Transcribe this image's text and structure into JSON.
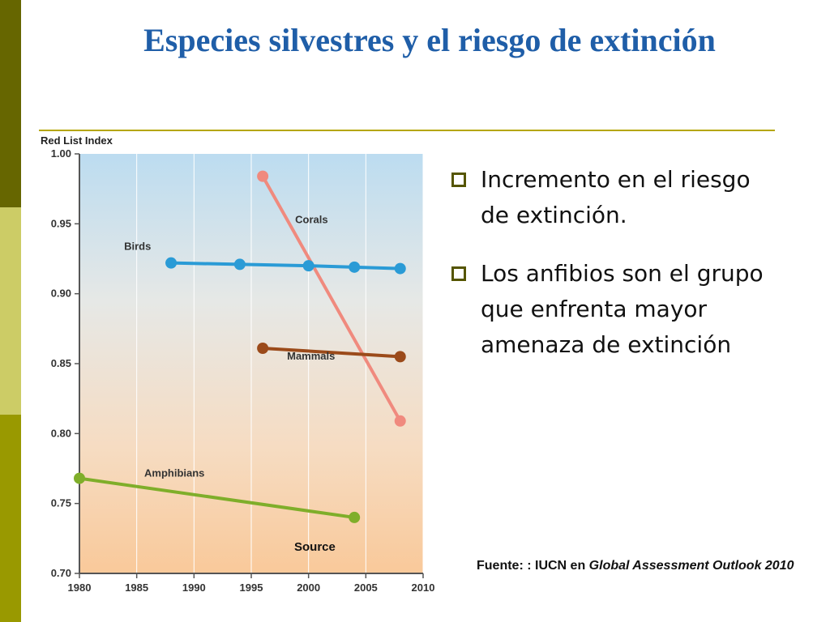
{
  "slide": {
    "title": "Especies silvestres y el riesgo de extinción",
    "bullets": [
      "Incremento en el riesgo de extinción.",
      "Los anfibios son el grupo que enfrenta mayor amenaza de extinción"
    ],
    "source_prefix": "Fuente: : IUCN en ",
    "source_title": "Global Assessment Outlook 2010"
  },
  "colors": {
    "title": "#1f5ea8",
    "rule": "#b5a600",
    "bullet_marker": "#555500"
  },
  "chart_data": {
    "type": "line",
    "ylabel": "Red List Index",
    "xlim": [
      1980,
      2010
    ],
    "ylim": [
      0.7,
      1.0
    ],
    "x_ticks": [
      "1980",
      "1985",
      "1990",
      "1995",
      "2000",
      "2005",
      "2010"
    ],
    "y_ticks": [
      "1.00",
      "0.95",
      "0.90",
      "0.85",
      "0.80",
      "0.75",
      "0.70"
    ],
    "grid": true,
    "annotation": "Source",
    "series": [
      {
        "name": "Corals",
        "color": "#f08a7e",
        "x": [
          1996,
          2008
        ],
        "y": [
          0.984,
          0.809
        ]
      },
      {
        "name": "Birds",
        "color": "#2a9bd6",
        "x": [
          1988,
          1994,
          2000,
          2004,
          2008
        ],
        "y": [
          0.922,
          0.921,
          0.92,
          0.919,
          0.918
        ]
      },
      {
        "name": "Mammals",
        "color": "#9b4a1a",
        "x": [
          1996,
          2008
        ],
        "y": [
          0.861,
          0.855
        ]
      },
      {
        "name": "Amphibians",
        "color": "#7fae2a",
        "x": [
          1980,
          2004
        ],
        "y": [
          0.768,
          0.74
        ]
      }
    ]
  }
}
